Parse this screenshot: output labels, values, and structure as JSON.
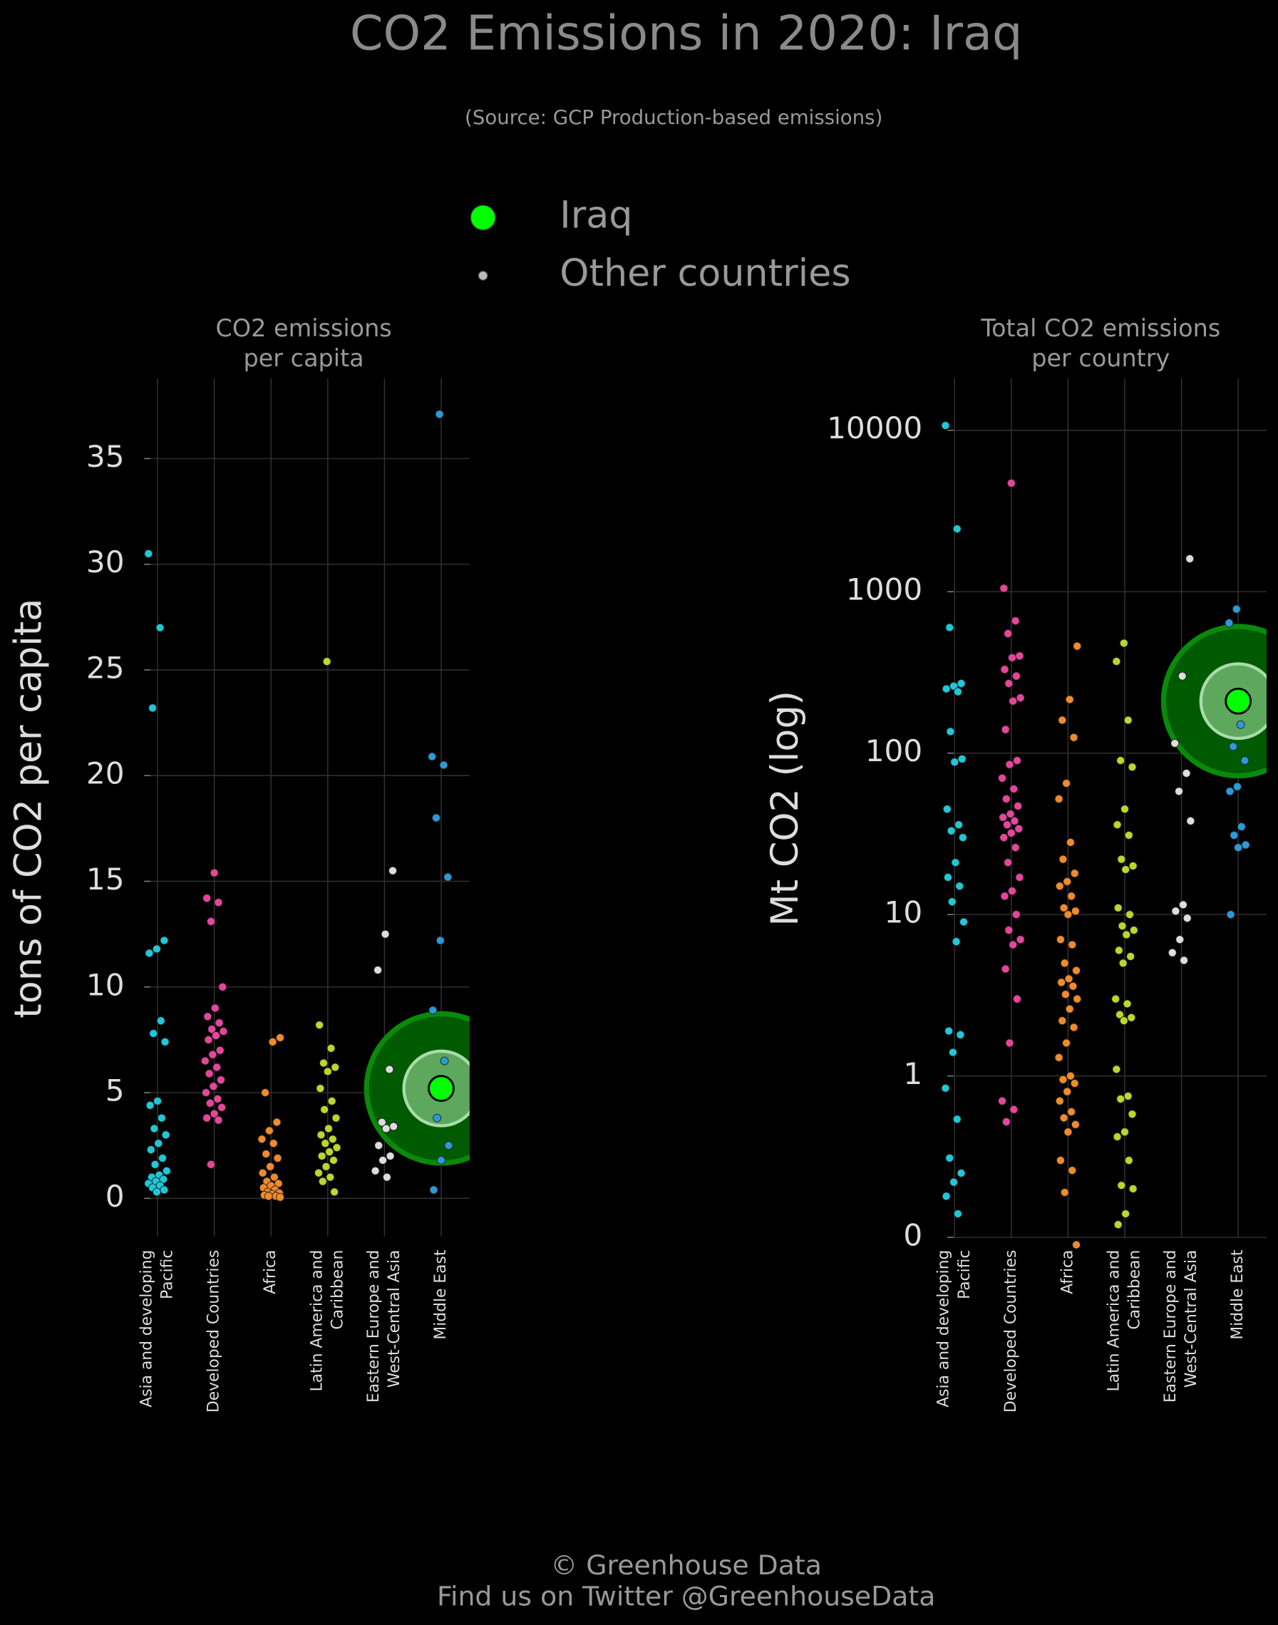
{
  "title": "CO2 Emissions in 2020: Iraq",
  "subtitle": "(Source: GCP Production-based emissions)",
  "legend": [
    {
      "name": "Iraq",
      "color": "#00ff00"
    },
    {
      "name": "Other countries",
      "color": "#bbbbbb"
    }
  ],
  "footer": [
    "© Greenhouse Data",
    "Find us on Twitter @GreenhouseData"
  ],
  "chart_data": [
    {
      "type": "strip",
      "panel_title": [
        "CO2 emissions",
        "per capita"
      ],
      "y_label": "tons of CO2 per capita",
      "categories": [
        [
          "Asia and developing",
          "Pacific"
        ],
        [
          "Developed Countries"
        ],
        [
          "Africa"
        ],
        [
          "Latin America and",
          "Caribbean"
        ],
        [
          "Eastern Europe and",
          "West-Central Asia"
        ],
        [
          "Middle East"
        ]
      ],
      "colors": [
        "#1ec8d8",
        "#e8449c",
        "#f08a2a",
        "#bcd62a",
        "#dddddd",
        "#2a9ad8"
      ],
      "groups": [
        [
          30.5,
          27,
          23.2,
          12.2,
          11.8,
          11.6,
          8.4,
          7.8,
          7.4,
          4.6,
          4.4,
          3.8,
          3.3,
          3.0,
          2.6,
          2.3,
          1.9,
          1.6,
          1.3,
          1.1,
          1.0,
          0.9,
          0.8,
          0.7,
          0.6,
          0.5,
          0.4,
          0.3
        ],
        [
          15.4,
          14.2,
          14.0,
          13.1,
          10.0,
          9.0,
          8.6,
          8.3,
          8.0,
          7.9,
          7.7,
          7.5,
          7.0,
          6.8,
          6.5,
          6.2,
          5.9,
          5.6,
          5.3,
          5.0,
          4.7,
          4.5,
          4.3,
          4.0,
          3.8,
          3.7,
          1.6
        ],
        [
          7.6,
          7.4,
          5.0,
          3.6,
          3.2,
          2.8,
          2.6,
          2.1,
          1.9,
          1.5,
          1.2,
          1.0,
          0.8,
          0.7,
          0.6,
          0.5,
          0.4,
          0.3,
          0.25,
          0.2,
          0.15,
          0.1,
          0.1,
          0.05
        ],
        [
          25.4,
          8.2,
          7.1,
          6.4,
          6.2,
          6.0,
          5.2,
          4.6,
          4.2,
          3.8,
          3.3,
          3.0,
          2.8,
          2.6,
          2.4,
          2.2,
          2.0,
          1.8,
          1.5,
          1.2,
          1.0,
          0.8,
          0.3
        ],
        [
          15.5,
          12.5,
          10.8,
          6.1,
          3.6,
          3.4,
          3.3,
          2.5,
          2.0,
          1.8,
          1.3,
          1.0
        ],
        [
          37.1,
          20.9,
          20.5,
          18.0,
          15.2,
          12.2,
          8.9,
          6.5,
          3.8,
          2.5,
          1.8,
          0.4
        ]
      ],
      "highlight": {
        "category": 5,
        "value": 5.2
      },
      "ylim": [
        -1.8,
        38.8
      ],
      "yticks": [
        0,
        5,
        10,
        15,
        20,
        25,
        30,
        35
      ],
      "log": false,
      "grid": true
    },
    {
      "type": "strip",
      "panel_title": [
        "Total CO2 emissions",
        "per country"
      ],
      "y_label": "Mt CO2 (log)",
      "categories": [
        [
          "Asia and developing",
          "Pacific"
        ],
        [
          "Developed Countries"
        ],
        [
          "Africa"
        ],
        [
          "Latin America and",
          "Caribbean"
        ],
        [
          "Eastern Europe and",
          "West-Central Asia"
        ],
        [
          "Middle East"
        ]
      ],
      "colors": [
        "#1ec8d8",
        "#e8449c",
        "#f08a2a",
        "#bcd62a",
        "#dddddd",
        "#2a9ad8"
      ],
      "groups": [
        [
          10700,
          2450,
          600,
          270,
          260,
          250,
          240,
          136,
          92,
          88,
          45,
          36,
          33,
          30,
          21,
          17,
          15,
          12,
          9,
          6.8,
          1.9,
          1.8,
          1.4,
          0.84,
          0.54,
          0.31,
          0.25,
          0.22,
          0.18,
          0.14
        ],
        [
          4700,
          1050,
          660,
          550,
          400,
          390,
          330,
          300,
          270,
          220,
          210,
          140,
          90,
          85,
          70,
          60,
          52,
          47,
          42,
          40,
          38,
          36,
          34,
          32,
          30,
          26,
          21,
          17,
          14,
          13,
          10,
          8,
          7,
          6.5,
          4.6,
          3.0,
          1.6,
          0.7,
          0.62,
          0.52
        ],
        [
          460,
          215,
          160,
          125,
          65,
          52,
          28,
          22,
          18,
          16,
          15,
          13,
          11,
          10.5,
          10,
          7,
          6.5,
          5,
          4.5,
          4,
          3.8,
          3.6,
          3.2,
          3,
          2.6,
          2.2,
          2,
          1.6,
          1.3,
          1,
          0.95,
          0.9,
          0.8,
          0.7,
          0.6,
          0.55,
          0.5,
          0.45,
          0.3,
          0.26,
          0.19,
          0.09
        ],
        [
          480,
          370,
          160,
          90,
          82,
          45,
          36,
          31,
          22,
          20,
          19,
          11,
          10,
          8.5,
          8,
          7.5,
          6,
          5.5,
          5,
          3,
          2.8,
          2.4,
          2.3,
          2.2,
          1.1,
          0.75,
          0.72,
          0.58,
          0.45,
          0.42,
          0.3,
          0.21,
          0.2,
          0.14,
          0.12
        ],
        [
          1600,
          300,
          115,
          75,
          58,
          38,
          11.5,
          10.5,
          9.5,
          7,
          5.8,
          5.2
        ],
        [
          780,
          640,
          150,
          110,
          90,
          62,
          58,
          35,
          31,
          27,
          26,
          10
        ]
      ],
      "highlight": {
        "category": 5,
        "value": 210
      },
      "ylim": [
        0.1,
        21000
      ],
      "yticks": [
        {
          "value": 0.1,
          "label": "0"
        },
        1,
        10,
        100,
        1000,
        10000
      ],
      "log": true,
      "grid": true
    }
  ]
}
